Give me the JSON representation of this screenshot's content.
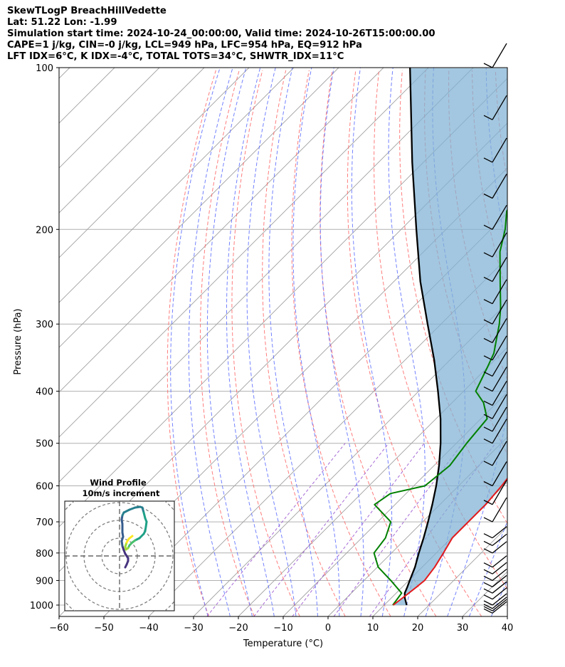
{
  "header": {
    "line1": "SkewTLogP BreachHillVedette",
    "line2": "Lat: 51.22   Lon: -1.99",
    "line3": "Simulation start time: 2024-10-24_00:00:00, Valid time: 2024-10-26T15:00:00.00",
    "line4": "CAPE=1 j/kg, CIN=-0 j/kg, LCL=949 hPa, LFC=954 hPa, EQ=912 hPa",
    "line5": "LFT IDX=6°C, K IDX=-4°C, TOTAL TOTS=34°C, SHWTR_IDX=11°C"
  },
  "colors": {
    "temperature": "#e41a1c",
    "dewpoint": "#008000",
    "parcel": "#000000",
    "cape_fill": "#7fb1d4",
    "dry_adiabat": "#ff6666",
    "moist_adiabat": "#5a6cff",
    "mixing_ratio": "#9b59d0",
    "isotherm": "#a0a0a0",
    "isobar": "#b0b0b0"
  },
  "chart_data": {
    "type": "line",
    "subtype": "skew-t log-p",
    "xlabel": "Temperature (°C)",
    "ylabel": "Pressure (hPa)",
    "xlim": [
      -60,
      40
    ],
    "ylim": [
      1050,
      100
    ],
    "y_scale": "log",
    "x_ticks": [
      -60,
      -50,
      -40,
      -30,
      -20,
      -10,
      0,
      10,
      20,
      30,
      40
    ],
    "x_tick_labels": [
      "−60",
      "−50",
      "−40",
      "−30",
      "−20",
      "−10",
      "0",
      "10",
      "20",
      "30",
      "40"
    ],
    "y_ticks": [
      1000,
      900,
      800,
      700,
      600,
      500,
      400,
      300,
      200,
      100
    ],
    "y_tick_labels": [
      "1000",
      "900",
      "800",
      "700",
      "600",
      "500",
      "400",
      "300",
      "200",
      "100"
    ],
    "series": [
      {
        "key": "temperature",
        "pressure": [
          1000,
          970,
          925,
          900,
          850,
          800,
          750,
          700,
          650,
          600,
          550,
          500,
          450,
          400,
          350,
          300,
          270,
          250,
          220,
          200,
          180,
          160,
          150,
          140,
          130,
          120,
          110,
          100
        ],
        "temperature": [
          12,
          12.5,
          13.2,
          13.5,
          12.8,
          11.6,
          10.2,
          10.2,
          10.2,
          9.6,
          8.6,
          5.6,
          1.6,
          -3.6,
          -7.3,
          -11.5,
          -16.3,
          -18.6,
          -24.2,
          -28.6,
          -33.1,
          -38.2,
          -41.7,
          -45.4,
          -49.5,
          -54.2,
          -59.6,
          -65.4
        ]
      },
      {
        "key": "dewpoint",
        "pressure": [
          1000,
          950,
          900,
          850,
          800,
          750,
          700,
          650,
          620,
          600,
          550,
          500,
          450,
          420,
          400,
          360,
          340,
          300,
          280,
          250,
          220,
          200,
          185,
          170,
          160,
          150,
          130,
          100
        ],
        "temperature": [
          11.9,
          11.2,
          6.0,
          0.2,
          -3.9,
          -4.7,
          -7.1,
          -14.6,
          -13.5,
          -7.5,
          -6.5,
          -7.7,
          -8.6,
          -13.0,
          -17.3,
          -20.1,
          -21.7,
          -27.0,
          -30.3,
          -36.3,
          -43.0,
          -46.8,
          -50.5,
          -52.5,
          -56.0,
          -58.5,
          -66.0,
          -80.6
        ]
      },
      {
        "key": "parcel",
        "pressure": [
          1000,
          970,
          950,
          925,
          900,
          850,
          800,
          750,
          700,
          650,
          600,
          550,
          500,
          450,
          400,
          350,
          300,
          250,
          200,
          150,
          100
        ],
        "temperature": [
          15.0,
          13.0,
          11.9,
          11.1,
          10.2,
          8.4,
          6.1,
          3.8,
          1.2,
          -1.7,
          -5.0,
          -8.9,
          -13.5,
          -19.0,
          -25.7,
          -33.5,
          -43.0,
          -54.1,
          -66.6,
          -82.5,
          -104.1
        ]
      }
    ],
    "wind_barbs": {
      "pressure": [
        1035,
        1025,
        1015,
        1000,
        975,
        950,
        925,
        900,
        875,
        850,
        800,
        775,
        750,
        700,
        650,
        600,
        550,
        500,
        475,
        450,
        425,
        400,
        375,
        350,
        325,
        300,
        275,
        250,
        225,
        200,
        175,
        150,
        125,
        100
      ]
    },
    "inset": {
      "title": "Wind Profile",
      "subtitle": "10m/s increment"
    }
  }
}
